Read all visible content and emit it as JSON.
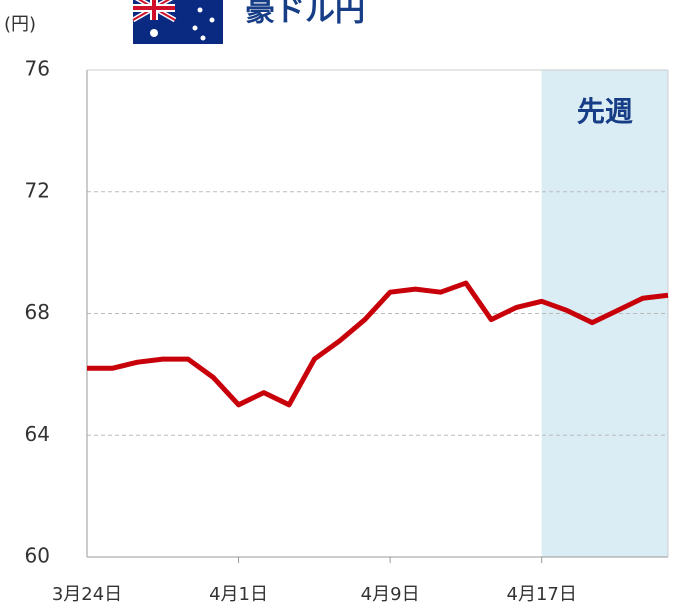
{
  "chart_data": {
    "type": "line",
    "title": "豪ドル円",
    "y_unit": "(円)",
    "categories": [
      "3月24日",
      null,
      null,
      null,
      null,
      null,
      "4月1日",
      null,
      null,
      null,
      null,
      null,
      "4月9日",
      null,
      null,
      null,
      null,
      null,
      "4月17日",
      null,
      null,
      null,
      null,
      null
    ],
    "series": [
      {
        "name": "豪ドル円",
        "color": "#c8000a",
        "values": [
          66.2,
          66.2,
          66.4,
          66.5,
          66.5,
          65.9,
          65.0,
          65.4,
          65.0,
          66.5,
          67.1,
          67.8,
          68.7,
          68.8,
          68.7,
          69.0,
          67.8,
          68.2,
          68.4,
          68.1,
          67.7,
          68.1,
          68.5,
          68.6
        ]
      }
    ],
    "ylim": [
      60,
      76
    ],
    "yticks": [
      60,
      64,
      68,
      72,
      76
    ],
    "grid": true,
    "shade": {
      "start": 18,
      "label": "先週",
      "color": "#daecf4"
    }
  }
}
